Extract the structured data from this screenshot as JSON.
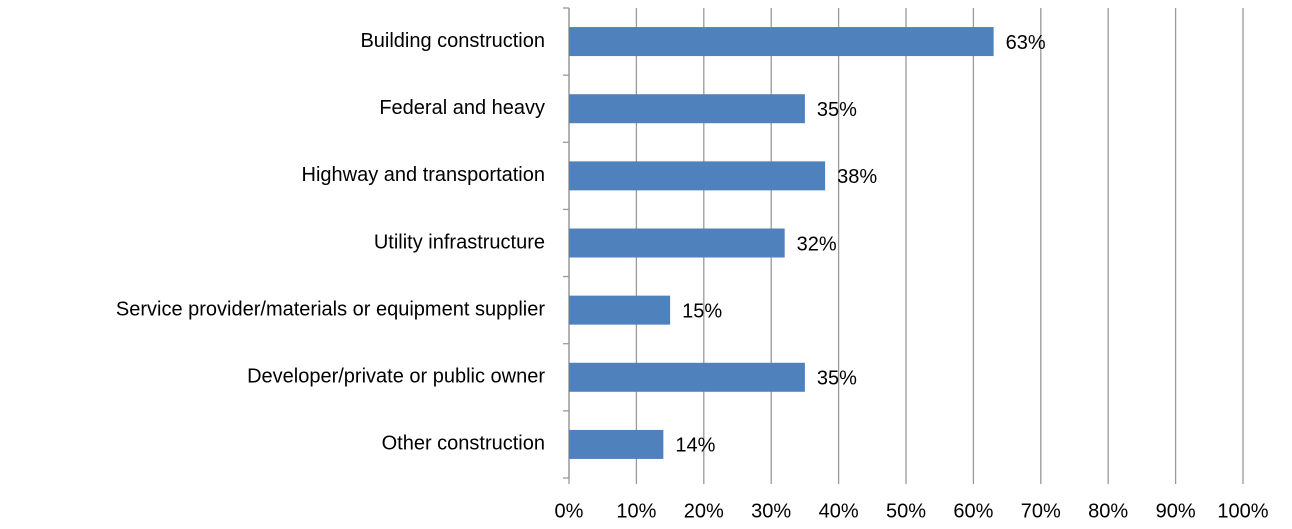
{
  "chart_data": {
    "type": "barh",
    "categories": [
      "Building construction",
      "Federal and heavy",
      "Highway and transportation",
      "Utility infrastructure",
      "Service provider/materials or equipment supplier",
      "Developer/private or public owner",
      "Other construction"
    ],
    "values": [
      63,
      35,
      38,
      32,
      15,
      35,
      14
    ],
    "value_labels": [
      "63%",
      "35%",
      "38%",
      "32%",
      "15%",
      "35%",
      "14%"
    ],
    "color": "#4f81bd",
    "xlim": [
      0,
      100
    ],
    "xticks": [
      {
        "value": 0,
        "label": "0%"
      },
      {
        "value": 10,
        "label": "10%"
      },
      {
        "value": 20,
        "label": "20%"
      },
      {
        "value": 30,
        "label": "30%"
      },
      {
        "value": 40,
        "label": "40%"
      },
      {
        "value": 50,
        "label": "50%"
      },
      {
        "value": 60,
        "label": "60%"
      },
      {
        "value": 70,
        "label": "70%"
      },
      {
        "value": 80,
        "label": "80%"
      },
      {
        "value": 90,
        "label": "90%"
      },
      {
        "value": 100,
        "label": "100%"
      }
    ],
    "grid": true
  }
}
